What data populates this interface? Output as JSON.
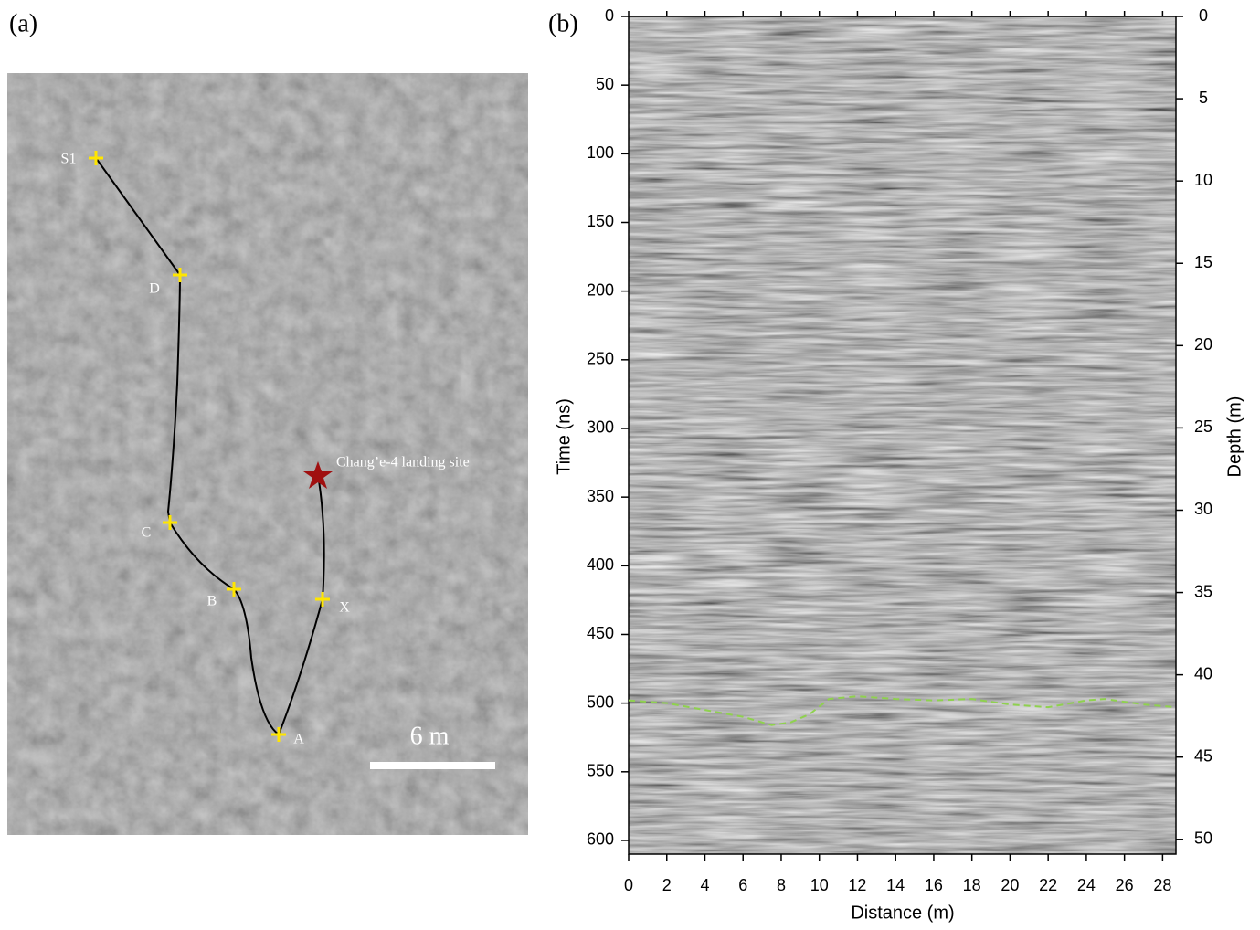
{
  "panel_a": {
    "label": "(a)",
    "points": [
      "S1",
      "D",
      "C",
      "B",
      "A",
      "X"
    ],
    "landing_site": "Chang’e-4 landing site",
    "scale_bar": "6 m"
  },
  "chart_data": {
    "type": "line",
    "panel_label": "(b)",
    "xlabel": "Distance (m)",
    "ylabel": "Time (ns)",
    "y2label": "Depth (m)",
    "x": [
      0,
      2,
      4,
      6,
      7.5,
      8.5,
      9.5,
      10.5,
      12,
      14,
      16,
      18,
      20,
      22,
      24,
      25,
      27,
      28.7
    ],
    "series": [
      {
        "color": "#8fd14f",
        "line_style": "dashed",
        "values": [
          498,
          500,
          505,
          510,
          516,
          514,
          508,
          497,
          495,
          497,
          498,
          497,
          501,
          503,
          498,
          497,
          501,
          503
        ]
      }
    ],
    "xlim": [
      0,
      28.7
    ],
    "xticks": [
      0,
      2,
      4,
      6,
      8,
      10,
      12,
      14,
      16,
      18,
      20,
      22,
      24,
      26,
      28
    ],
    "ylim": [
      0,
      610
    ],
    "y_inverted": true,
    "yticks": [
      0,
      50,
      100,
      150,
      200,
      250,
      300,
      350,
      400,
      450,
      500,
      550,
      600
    ],
    "y2lim": [
      0,
      50.9
    ],
    "y2ticks": [
      0,
      5,
      10,
      15,
      20,
      25,
      30,
      35,
      40,
      45,
      50
    ]
  }
}
